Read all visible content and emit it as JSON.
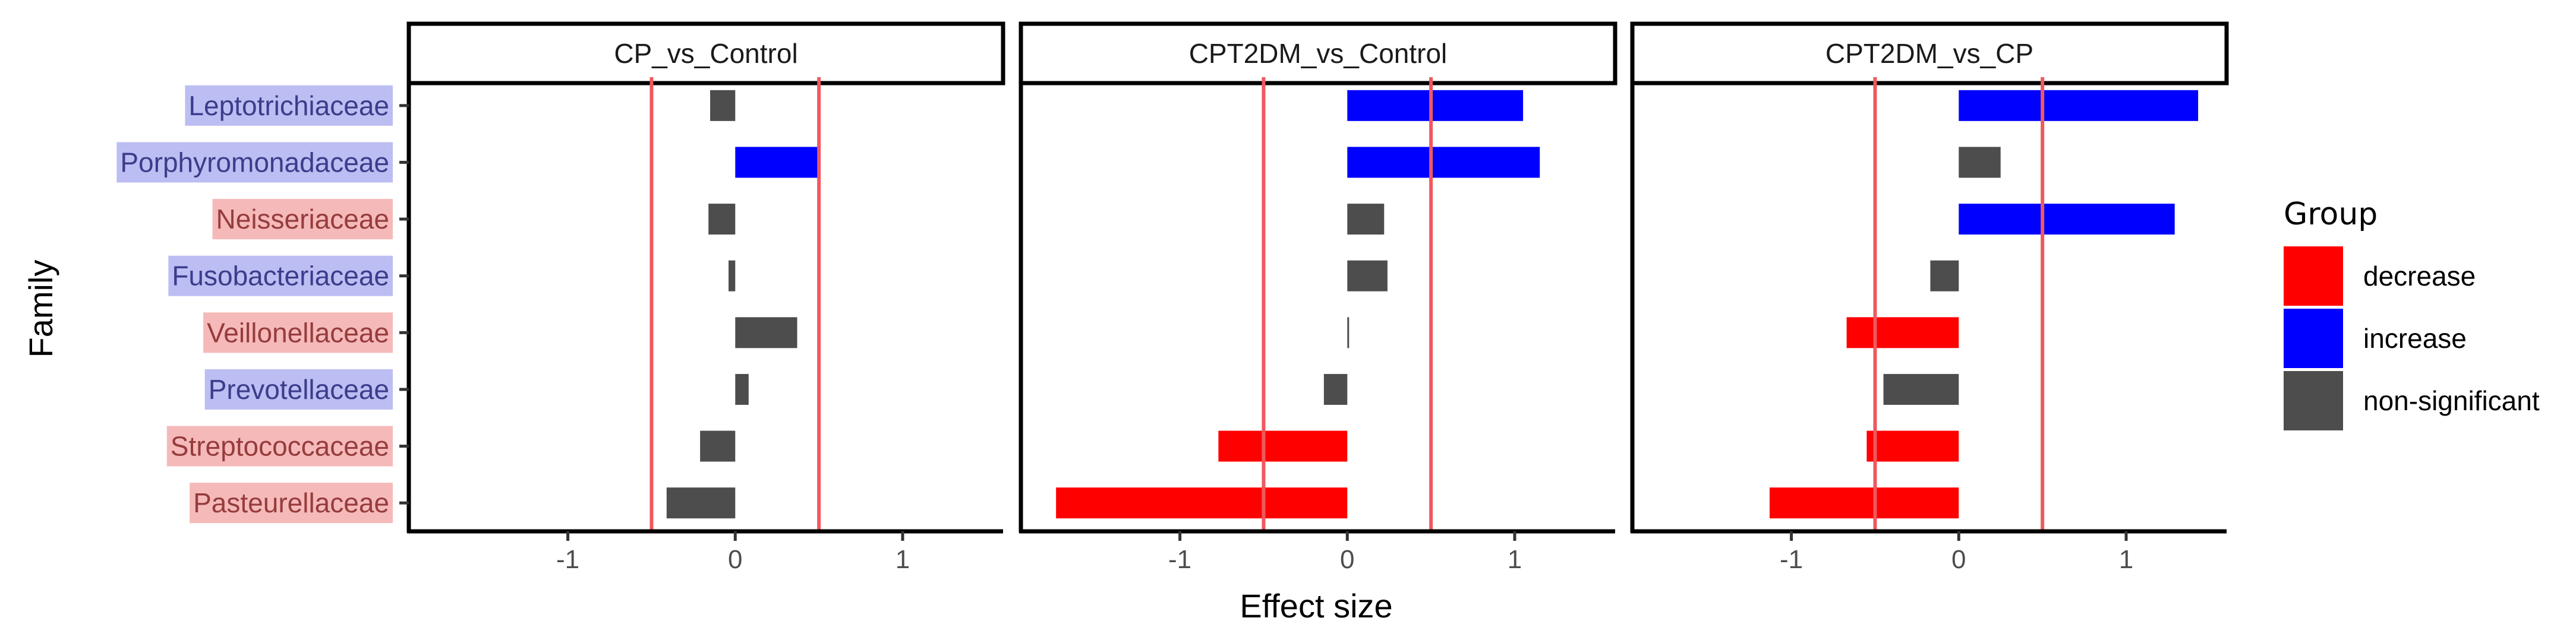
{
  "chart_data": {
    "type": "bar",
    "orientation": "horizontal",
    "xlabel": "Effect size",
    "ylabel": "Family",
    "xlim": [
      -1.95,
      1.6
    ],
    "xticks": [
      -1,
      0,
      1
    ],
    "xtick_labels": [
      "-1",
      "0",
      "1"
    ],
    "threshold_lines": [
      -0.5,
      0.5
    ],
    "threshold_color": "#f0585e",
    "categories": [
      {
        "name": "Leptotrichiaceae",
        "direction": "increase"
      },
      {
        "name": "Porphyromonadaceae",
        "direction": "increase"
      },
      {
        "name": "Neisseriaceae",
        "direction": "decrease"
      },
      {
        "name": "Fusobacteriaceae",
        "direction": "increase"
      },
      {
        "name": "Veillonellaceae",
        "direction": "decrease"
      },
      {
        "name": "Prevotellaceae",
        "direction": "increase"
      },
      {
        "name": "Streptococcaceae",
        "direction": "decrease"
      },
      {
        "name": "Pasteurellaceae",
        "direction": "decrease"
      }
    ],
    "label_colors": {
      "increase": {
        "bg": "#bcbdf2",
        "fg": "#3c3c8c"
      },
      "decrease": {
        "bg": "#f6b9b9",
        "fg": "#963c3c"
      }
    },
    "panels": [
      {
        "title": "CP_vs_Control",
        "values": [
          -0.15,
          0.5,
          -0.16,
          -0.04,
          0.37,
          0.08,
          -0.21,
          -0.41
        ],
        "groups": [
          "non-significant",
          "increase",
          "non-significant",
          "non-significant",
          "non-significant",
          "non-significant",
          "non-significant",
          "non-significant"
        ]
      },
      {
        "title": "CPT2DM_vs_Control",
        "values": [
          1.05,
          1.15,
          0.22,
          0.24,
          0.01,
          -0.14,
          -0.77,
          -1.74
        ],
        "groups": [
          "increase",
          "increase",
          "non-significant",
          "non-significant",
          "non-significant",
          "non-significant",
          "decrease",
          "decrease"
        ]
      },
      {
        "title": "CPT2DM_vs_CP",
        "values": [
          1.43,
          0.25,
          1.29,
          -0.17,
          -0.67,
          -0.45,
          -0.55,
          -1.13
        ],
        "groups": [
          "increase",
          "non-significant",
          "increase",
          "non-significant",
          "decrease",
          "non-significant",
          "decrease",
          "decrease"
        ]
      }
    ],
    "legend": {
      "title": "Group",
      "position": "right",
      "items": [
        {
          "label": "decrease",
          "color": "#ff0000"
        },
        {
          "label": "increase",
          "color": "#0000ff"
        },
        {
          "label": "non-significant",
          "color": "#4d4d4d"
        }
      ]
    }
  }
}
